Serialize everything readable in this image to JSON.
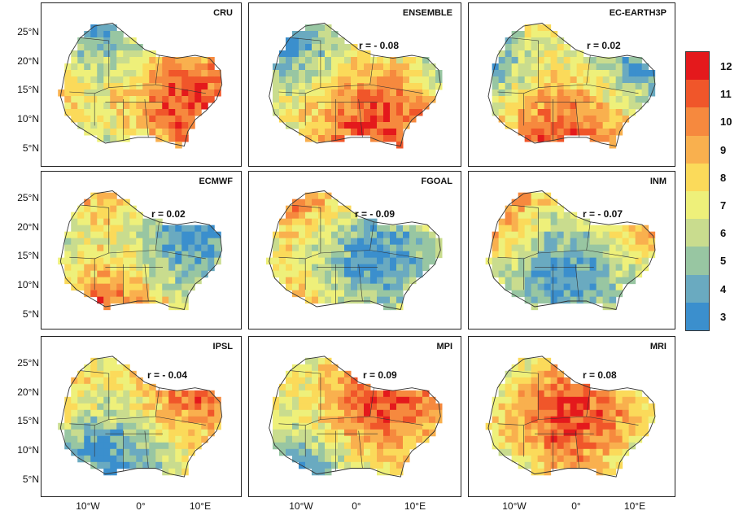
{
  "panels": [
    {
      "title": "CRU",
      "r": ""
    },
    {
      "title": "ENSEMBLE",
      "r": "r = - 0.08"
    },
    {
      "title": "EC-EARTH3P",
      "r": "r = 0.02"
    },
    {
      "title": "ECMWF",
      "r": "r = 0.02"
    },
    {
      "title": "FGOAL",
      "r": "r = - 0.09"
    },
    {
      "title": "INM",
      "r": "r = - 0.07"
    },
    {
      "title": "IPSL",
      "r": "r = - 0.04"
    },
    {
      "title": "MPI",
      "r": "r = 0.09"
    },
    {
      "title": "MRI",
      "r": "r = 0.08"
    }
  ],
  "lat_ticks": [
    "25°N",
    "20°N",
    "15°N",
    "10°N",
    "5°N"
  ],
  "lon_ticks": [
    "10°W",
    "0°",
    "10°E"
  ],
  "legend": {
    "values": [
      "12",
      "11",
      "10",
      "9",
      "8",
      "7",
      "6",
      "5",
      "4",
      "3"
    ],
    "colors": [
      "#e4191c",
      "#f0562a",
      "#f6893e",
      "#f9b04e",
      "#fbda5a",
      "#eef07a",
      "#c9dc8e",
      "#98c6a2",
      "#6aaac0",
      "#3b8fcd"
    ]
  }
}
